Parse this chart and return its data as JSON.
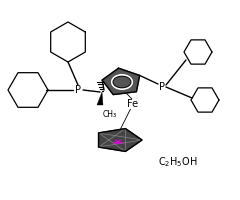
{
  "bg_color": "#ffffff",
  "line_color": "#000000",
  "pink_color": "#dd00dd",
  "label_fe": "Fe",
  "label_p1": "P",
  "label_p2": "P",
  "label_ch3": "CH₃",
  "c2h5oh": "C₂H₅OH",
  "figsize": [
    2.4,
    2.0
  ],
  "dpi": 100
}
